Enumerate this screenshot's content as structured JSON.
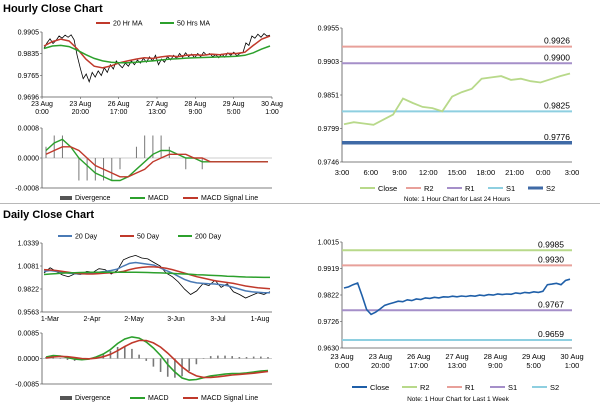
{
  "sections": {
    "hourly_title": "Hourly Close Chart",
    "daily_title": "Daily Close Chart"
  },
  "chart_data": [
    {
      "id": "hourly_price",
      "type": "line",
      "legend": [
        "20 Hr MA",
        "50 Hrs MA"
      ],
      "ylim": [
        0.9696,
        0.9905
      ],
      "yticks": [
        "0.9905",
        "0.9835",
        "0.9765",
        "0.9696"
      ],
      "xticks": [
        "23 Aug\n0:00",
        "23 Aug\n20:00",
        "26 Aug\n17:00",
        "27 Aug\n13:00",
        "28 Aug\n9:00",
        "29 Aug\n5:00",
        "30 Aug\n1:00"
      ],
      "series": [
        {
          "name": "Price",
          "color": "#000000",
          "values": [
            0.9852,
            0.987,
            0.9883,
            0.9868,
            0.9878,
            0.9892,
            0.9885,
            0.9895,
            0.9888,
            0.9896,
            0.988,
            0.983,
            0.979,
            0.9755,
            0.977,
            0.9745,
            0.9775,
            0.976,
            0.978,
            0.9765,
            0.979,
            0.9775,
            0.98,
            0.9786,
            0.9812,
            0.98,
            0.979,
            0.9805,
            0.9795,
            0.9812,
            0.98,
            0.9815,
            0.9805,
            0.982,
            0.9808,
            0.9825,
            0.9812,
            0.983,
            0.98,
            0.9818,
            0.9808,
            0.9826,
            0.9815,
            0.983,
            0.982,
            0.9836,
            0.9824,
            0.9838,
            0.9826,
            0.9834,
            0.9822,
            0.9836,
            0.9826,
            0.984,
            0.983,
            0.9836,
            0.9826,
            0.9832,
            0.9822,
            0.9834,
            0.9824,
            0.9838,
            0.983,
            0.984,
            0.9828,
            0.9836,
            0.9838,
            0.987,
            0.9862,
            0.9892,
            0.9885,
            0.9898,
            0.9888,
            0.99,
            0.9892,
            0.9895
          ]
        },
        {
          "name": "20 Hr MA",
          "color": "#c0392b",
          "values": [
            0.986,
            0.9874,
            0.9882,
            0.9876,
            0.985,
            0.9818,
            0.9795,
            0.979,
            0.9796,
            0.9806,
            0.9812,
            0.9818,
            0.9822,
            0.982,
            0.9825,
            0.9828,
            0.9826,
            0.983,
            0.9832,
            0.983,
            0.9834,
            0.9832,
            0.9836,
            0.9836,
            0.984,
            0.9862,
            0.9882,
            0.9892
          ]
        },
        {
          "name": "50 Hrs MA",
          "color": "#2ca02c",
          "values": [
            0.9852,
            0.986,
            0.9862,
            0.9858,
            0.9846,
            0.9832,
            0.982,
            0.9812,
            0.9808,
            0.9806,
            0.9806,
            0.9808,
            0.981,
            0.9812,
            0.9815,
            0.9818,
            0.9819,
            0.9821,
            0.9822,
            0.9823,
            0.9824,
            0.9825,
            0.9826,
            0.9827,
            0.983,
            0.9838,
            0.985,
            0.986
          ]
        }
      ]
    },
    {
      "id": "hourly_macd",
      "type": "line",
      "yticks": [
        "0.0008",
        "0.0000",
        "-0.0008"
      ],
      "ylim": [
        -0.0008,
        0.0008
      ],
      "legend": [
        "Divergence",
        "MACD",
        "MACD Signal Line"
      ],
      "series": [
        {
          "name": "MACD",
          "color": "#2ca02c",
          "values": [
            0.0002,
            0.0004,
            0.0005,
            0.0003,
            0.0,
            -0.0002,
            -0.0004,
            -0.0005,
            -0.0006,
            -0.0006,
            -0.0005,
            -0.0003,
            -0.0001,
            0.0001,
            0.0002,
            0.0002,
            0.0001,
            0.0,
            0.0,
            -0.0001,
            -0.0001,
            -0.0001,
            -0.0001,
            -0.0001,
            -0.0001,
            -0.0001,
            -0.0001,
            -0.0001
          ]
        },
        {
          "name": "MACD Signal Line",
          "color": "#c0392b",
          "values": [
            0.0001,
            0.0002,
            0.0003,
            0.0003,
            0.0002,
            0.0,
            -0.0002,
            -0.0003,
            -0.0004,
            -0.0005,
            -0.0005,
            -0.0004,
            -0.0003,
            -0.0001,
            0.0,
            0.0001,
            0.0001,
            0.0001,
            0.0,
            0.0,
            -0.0001,
            -0.0001,
            -0.0001,
            -0.0001,
            -0.0001,
            -0.0001,
            -0.0001,
            -0.0001
          ]
        }
      ]
    },
    {
      "id": "hourly_levels",
      "type": "line",
      "ylim": [
        0.9746,
        0.9955
      ],
      "yticks": [
        "0.9955",
        "0.9903",
        "0.9851",
        "0.9799",
        "0.9746"
      ],
      "xticks": [
        "3:00",
        "6:00",
        "9:00",
        "12:00",
        "15:00",
        "18:00",
        "21:00",
        "0:00",
        "3:00"
      ],
      "levels": [
        {
          "name": "R2",
          "value": 0.9926,
          "label": "0.9926",
          "color": "#e8a09a"
        },
        {
          "name": "R1",
          "value": 0.99,
          "label": "0.9900",
          "color": "#a58fc9"
        },
        {
          "name": "S1",
          "value": 0.9825,
          "label": "0.9825",
          "color": "#8ecfe0"
        },
        {
          "name": "S2",
          "value": 0.9776,
          "label": "0.9776",
          "color": "#3f6aa6"
        }
      ],
      "series": [
        {
          "name": "Close",
          "color": "#b8d98a",
          "values": [
            0.9805,
            0.9808,
            0.9806,
            0.9804,
            0.9812,
            0.982,
            0.9845,
            0.9838,
            0.9832,
            0.983,
            0.9825,
            0.9848,
            0.9855,
            0.986,
            0.9876,
            0.9878,
            0.988,
            0.9874,
            0.9876,
            0.9872,
            0.987,
            0.9875,
            0.988,
            0.9884
          ]
        }
      ],
      "legend": [
        "Close",
        "R2",
        "R1",
        "S1",
        "S2"
      ],
      "note": "Note: 1 Hour Chart for Last 24 Hours"
    },
    {
      "id": "daily_price",
      "type": "line",
      "legend": [
        "20 Day",
        "50 Day",
        "200 Day"
      ],
      "ylim": [
        0.9563,
        1.0339
      ],
      "yticks": [
        "1.0339",
        "1.0081",
        "0.9822",
        "0.9563"
      ],
      "xticks": [
        "1-Mar",
        "2-Apr",
        "2-May",
        "3-Jun",
        "3-Jul",
        "1-Aug"
      ],
      "series": [
        {
          "name": "Price",
          "color": "#000000",
          "values": [
            1.0,
            1.006,
            1.002,
            0.998,
            0.996,
            0.999,
            0.9985,
            1.002,
            1.001,
            1.005,
            1.004,
            0.999,
            1.003,
            1.015,
            1.018,
            1.02,
            1.017,
            1.016,
            1.012,
            1.008,
            1.0,
            0.996,
            0.99,
            0.982,
            0.976,
            0.98,
            0.988,
            0.986,
            0.992,
            0.984,
            0.988,
            0.979,
            0.976,
            0.972,
            0.975,
            0.978,
            0.976,
            0.979
          ]
        },
        {
          "name": "20 Day",
          "color": "#4a7ab5",
          "values": [
            1.002,
            1.003,
            1.002,
            1.001,
            1.0,
            0.9995,
            0.999,
            0.9995,
            1.0,
            1.001,
            1.002,
            1.003,
            1.0045,
            1.008,
            1.011,
            1.012,
            1.011,
            1.01,
            1.009,
            1.006,
            1.003,
            1.0,
            0.9965,
            0.993,
            0.9905,
            0.989,
            0.9885,
            0.988,
            0.9878,
            0.987,
            0.986,
            0.984,
            0.982,
            0.98,
            0.979,
            0.9785,
            0.978,
            0.978
          ]
        },
        {
          "name": "50 Day",
          "color": "#c0392b",
          "values": [
            1.004,
            1.0035,
            1.003,
            1.002,
            1.001,
            1.0,
            0.9995,
            0.999,
            0.999,
            0.9995,
            1.0,
            1.0005,
            1.001,
            1.002,
            1.004,
            1.0055,
            1.0065,
            1.007,
            1.007,
            1.0065,
            1.0055,
            1.004,
            1.002,
            1.0,
            0.998,
            0.996,
            0.9945,
            0.993,
            0.9915,
            0.9905,
            0.9895,
            0.9885,
            0.987,
            0.9855,
            0.9845,
            0.9835,
            0.983,
            0.9825
          ]
        },
        {
          "name": "200 Day",
          "color": "#2ca02c",
          "values": [
            0.9985,
            0.999,
            0.9995,
            1.0,
            1.0003,
            1.0005,
            1.0007,
            1.0008,
            1.0009,
            1.001,
            1.001,
            1.001,
            1.001,
            1.001,
            1.001,
            1.0009,
            1.0008,
            1.0007,
            1.0005,
            1.0003,
            1.0,
            0.9997,
            0.9994,
            0.999,
            0.9987,
            0.9983,
            0.998,
            0.9977,
            0.9973,
            0.997,
            0.9966,
            0.9963,
            0.996,
            0.9957,
            0.9955,
            0.9953,
            0.9952,
            0.9952
          ]
        }
      ]
    },
    {
      "id": "daily_macd",
      "type": "line",
      "yticks": [
        "0.0085",
        "0.0000",
        "-0.0085"
      ],
      "ylim": [
        -0.0085,
        0.0085
      ],
      "legend": [
        "Divergence",
        "MACD",
        "MACD Signal Line"
      ],
      "series": [
        {
          "name": "MACD",
          "color": "#2ca02c",
          "values": [
            0.0005,
            0.001,
            0.0008,
            0.0003,
            -0.0002,
            -0.0004,
            -0.0002,
            0.0005,
            0.0015,
            0.003,
            0.005,
            0.0065,
            0.0072,
            0.0068,
            0.0055,
            0.0035,
            0.001,
            -0.002,
            -0.0045,
            -0.0065,
            -0.0072,
            -0.007,
            -0.0064,
            -0.0058,
            -0.0055,
            -0.0052,
            -0.005,
            -0.005,
            -0.0048,
            -0.0045,
            -0.0042,
            -0.004
          ]
        },
        {
          "name": "MACD Signal Line",
          "color": "#c0392b",
          "values": [
            0.0002,
            0.0005,
            0.0007,
            0.0006,
            0.0003,
            0.0,
            -0.0001,
            0.0001,
            0.0006,
            0.0014,
            0.0026,
            0.004,
            0.0052,
            0.006,
            0.006,
            0.0052,
            0.0038,
            0.0018,
            -0.0005,
            -0.0028,
            -0.0046,
            -0.0058,
            -0.0063,
            -0.0063,
            -0.0061,
            -0.0058,
            -0.0055,
            -0.0053,
            -0.0051,
            -0.0049,
            -0.0046,
            -0.0043
          ]
        }
      ]
    },
    {
      "id": "daily_levels",
      "type": "line",
      "ylim": [
        0.963,
        1.0015
      ],
      "yticks": [
        "1.0015",
        "0.9919",
        "0.9822",
        "0.9726",
        "0.9630"
      ],
      "xticks": [
        "23 Aug\n0:00",
        "23 Aug\n20:00",
        "26 Aug\n17:00",
        "27 Aug\n13:00",
        "28 Aug\n9:00",
        "29 Aug\n5:00",
        "30 Aug\n1:00"
      ],
      "levels": [
        {
          "name": "R2",
          "value": 0.9985,
          "label": "0.9985",
          "color": "#b8d98a"
        },
        {
          "name": "R1",
          "value": 0.993,
          "label": "0.9930",
          "color": "#e8a09a"
        },
        {
          "name": "S1",
          "value": 0.9767,
          "label": "0.9767",
          "color": "#a58fc9"
        },
        {
          "name": "S2",
          "value": 0.9659,
          "label": "0.9659",
          "color": "#8ecfe0"
        }
      ],
      "series": [
        {
          "name": "Close",
          "color": "#1f5fa8",
          "values": [
            0.9848,
            0.9852,
            0.986,
            0.9866,
            0.982,
            0.977,
            0.9752,
            0.976,
            0.9772,
            0.9785,
            0.979,
            0.9795,
            0.98,
            0.9798,
            0.9805,
            0.9802,
            0.9808,
            0.9806,
            0.9812,
            0.981,
            0.9814,
            0.9812,
            0.9816,
            0.9815,
            0.9818,
            0.9816,
            0.9819,
            0.9817,
            0.982,
            0.9818,
            0.9822,
            0.982,
            0.9824,
            0.9822,
            0.9826,
            0.9824,
            0.9826,
            0.9825,
            0.983,
            0.9828,
            0.9832,
            0.983,
            0.9834,
            0.9832,
            0.9836,
            0.986,
            0.9862,
            0.9865,
            0.986,
            0.9875,
            0.988
          ]
        }
      ],
      "legend": [
        "Close",
        "R2",
        "R1",
        "S1",
        "S2"
      ],
      "note": "Note: 1 Hour Chart for Last 1 Week"
    }
  ]
}
